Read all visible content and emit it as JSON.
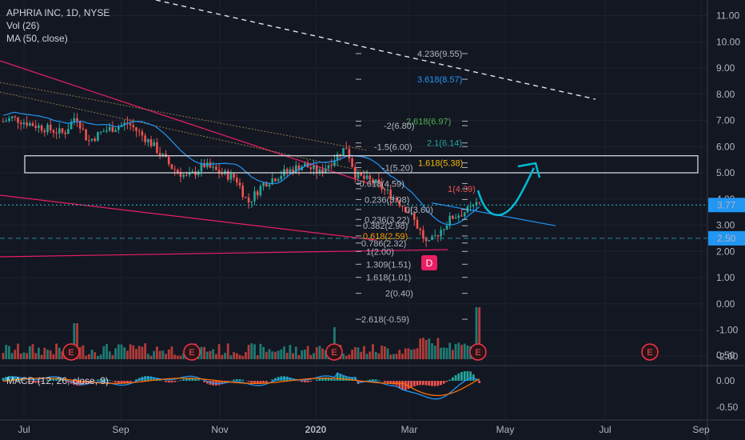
{
  "legend": {
    "symbol": "APHRIA INC, 1D, NYSE",
    "vol": "Vol (26)",
    "ma": "MA (50, close)",
    "macd": "MACD (12, 26, close, 9)"
  },
  "colors": {
    "background": "#131722",
    "grid": "#1e222d",
    "up": "#26a69a",
    "down": "#ef5350",
    "ma": "#2196f3",
    "trend": "#e91e63",
    "arrow": "#00bcd4",
    "badge": "#f23645"
  },
  "chart_data": {
    "type": "candlestick",
    "title": "APHRIA INC, 1D, NYSE",
    "y_axis_ticks": [
      "11.00",
      "10.00",
      "9.00",
      "8.00",
      "7.00",
      "6.00",
      "5.00",
      "4.00",
      "3.00",
      "2.00",
      "1.00",
      "0.00",
      "-1.00",
      "-2.00"
    ],
    "ylim": [
      -2.3,
      11.5
    ],
    "x_axis_ticks": [
      "Jul",
      "Sep",
      "Nov",
      "2020",
      "Mar",
      "May",
      "Jul",
      "Sep"
    ],
    "price_labels": [
      {
        "text": "3.77",
        "value": 3.77,
        "color": "#2196f3"
      },
      {
        "text": "2.50",
        "value": 2.5,
        "color": "#2196f3"
      }
    ],
    "macd_axis_ticks": [
      "0.50",
      "0.00",
      "-0.50"
    ],
    "key_levels": {
      "current_price": 3.77,
      "support": 2.5,
      "resistance_box": [
        5.0,
        5.65
      ]
    },
    "fib_levels": [
      {
        "label": "4.236(9.55)",
        "value": 9.55,
        "color": "#b2b5be"
      },
      {
        "label": "3.618(8.57)",
        "value": 8.57,
        "color": "#2196f3"
      },
      {
        "label": "2.618(6.97)",
        "value": 6.97,
        "color": "#4caf50"
      },
      {
        "label": "-2(6.80)",
        "value": 6.8,
        "color": "#b2b5be"
      },
      {
        "label": "2.1(6.14)",
        "value": 6.14,
        "color": "#26a69a"
      },
      {
        "label": "-1.5(6.00)",
        "value": 6.0,
        "color": "#b2b5be"
      },
      {
        "label": "1.618(5.38)",
        "value": 5.38,
        "color": "#f0b90b"
      },
      {
        "label": "-1(5.20)",
        "value": 5.2,
        "color": "#b2b5be"
      },
      {
        "label": "-0.618(4.59)",
        "value": 4.59,
        "color": "#b2b5be"
      },
      {
        "label": "1(4.39)",
        "value": 4.39,
        "color": "#ef5350"
      },
      {
        "label": "0.236(3.98)",
        "value": 3.98,
        "color": "#b2b5be"
      },
      {
        "label": "0(3.60)",
        "value": 3.6,
        "color": "#b2b5be"
      },
      {
        "label": "0.236(3.22)",
        "value": 3.22,
        "color": "#b2b5be"
      },
      {
        "label": "0.382(2.98)",
        "value": 2.98,
        "color": "#b2b5be"
      },
      {
        "label": "0.618(2.59)",
        "value": 2.59,
        "color": "#ff9800"
      },
      {
        "label": "0.786(2.32)",
        "value": 2.32,
        "color": "#b2b5be"
      },
      {
        "label": "1(2.00)",
        "value": 2.0,
        "color": "#b2b5be"
      },
      {
        "label": "1.309(1.51)",
        "value": 1.51,
        "color": "#b2b5be"
      },
      {
        "label": "1.618(1.01)",
        "value": 1.01,
        "color": "#b2b5be"
      },
      {
        "label": "2(0.40)",
        "value": 0.4,
        "color": "#b2b5be"
      },
      {
        "label": "2.618(-0.59)",
        "value": -0.59,
        "color": "#b2b5be"
      }
    ],
    "earnings_markers": [
      "E",
      "E",
      "E",
      "E",
      "E"
    ],
    "dividend_marker": "D"
  }
}
